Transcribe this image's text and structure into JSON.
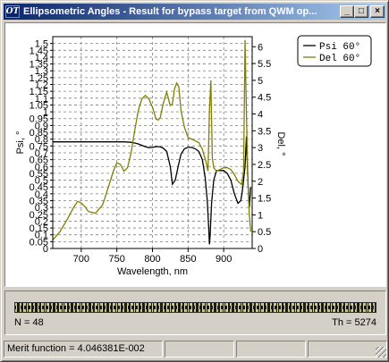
{
  "window": {
    "title": "Ellipsometric Angles - Result for bypass target from QWM op...",
    "icon_text": "OT",
    "buttons": {
      "minimize": "_",
      "maximize": "□",
      "close": "×"
    }
  },
  "chart_data": {
    "type": "line",
    "xlabel": "Wavelength, nm",
    "ylabel_left": "Psi, °",
    "ylabel_right": "Del, °",
    "xlim": [
      660,
      940
    ],
    "ylim_left": [
      0,
      1.55
    ],
    "ylim_right": [
      0,
      6.3
    ],
    "x_ticks": [
      700,
      750,
      800,
      850,
      900
    ],
    "y_ticks_left": [
      "0",
      "0.05",
      "0.1",
      "0.15",
      "0.2",
      "0.25",
      "0.3",
      "0.35",
      "0.4",
      "0.45",
      "0.5",
      "0.55",
      "0.6",
      "0.65",
      "0.7",
      "0.75",
      "0.8",
      "0.85",
      "0.9",
      "0.95",
      "1",
      "1.05",
      "1.1",
      "1.15",
      "1.2",
      "1.25",
      "1.3",
      "1.35",
      "1.4",
      "1.45",
      "1.5"
    ],
    "y_ticks_right": [
      "0",
      "0.5",
      "1",
      "1.5",
      "2",
      "2.5",
      "3",
      "3.5",
      "4",
      "4.5",
      "5",
      "5.5",
      "6"
    ],
    "grid": true,
    "legend_position": "top-right",
    "series": [
      {
        "name": "Psi 60°",
        "axis": "left",
        "color": "#000000",
        "x": [
          660,
          700,
          740,
          760,
          770,
          775,
          780,
          785,
          790,
          795,
          800,
          805,
          810,
          815,
          820,
          825,
          828,
          832,
          836,
          840,
          845,
          850,
          855,
          860,
          865,
          870,
          874,
          877,
          879,
          880,
          881,
          883,
          886,
          890,
          895,
          900,
          905,
          910,
          915,
          920,
          924,
          927,
          930,
          932,
          934,
          936,
          938
        ],
        "y": [
          0.78,
          0.78,
          0.78,
          0.78,
          0.777,
          0.772,
          0.765,
          0.755,
          0.745,
          0.738,
          0.74,
          0.745,
          0.745,
          0.735,
          0.71,
          0.6,
          0.47,
          0.5,
          0.6,
          0.69,
          0.73,
          0.74,
          0.74,
          0.73,
          0.71,
          0.65,
          0.52,
          0.35,
          0.15,
          0.03,
          0.1,
          0.33,
          0.5,
          0.57,
          0.57,
          0.57,
          0.55,
          0.5,
          0.4,
          0.33,
          0.35,
          0.45,
          0.6,
          0.82,
          0.5,
          0.3,
          0.45
        ]
      },
      {
        "name": "Del 60°",
        "axis": "right",
        "color": "#808000",
        "x": [
          660,
          670,
          680,
          690,
          695,
          700,
          705,
          710,
          720,
          730,
          740,
          745,
          750,
          755,
          760,
          765,
          770,
          775,
          780,
          785,
          790,
          795,
          800,
          805,
          808,
          811,
          815,
          820,
          825,
          828,
          831,
          834,
          837,
          840,
          845,
          850,
          855,
          860,
          865,
          870,
          872,
          875,
          878,
          880,
          882,
          884,
          886,
          890,
          895,
          900,
          905,
          910,
          915,
          920,
          925,
          928,
          930,
          932,
          934,
          936,
          938
        ],
        "y": [
          0.25,
          0.5,
          0.85,
          1.25,
          1.4,
          1.35,
          1.25,
          1.1,
          1.05,
          1.3,
          1.95,
          2.3,
          2.55,
          2.5,
          2.3,
          2.4,
          2.85,
          3.5,
          4.1,
          4.45,
          4.55,
          4.45,
          4.2,
          3.85,
          3.82,
          3.9,
          4.3,
          4.65,
          4.25,
          4.3,
          4.75,
          4.92,
          4.8,
          4.1,
          3.6,
          3.3,
          3.25,
          3.2,
          3.15,
          2.95,
          2.8,
          2.6,
          2.3,
          4.1,
          5.0,
          2.7,
          2.4,
          2.3,
          2.35,
          2.4,
          2.4,
          2.35,
          2.2,
          2.0,
          1.9,
          2.3,
          6.2,
          4.0,
          2.0,
          1.0,
          0.5
        ]
      }
    ]
  },
  "panel": {
    "n_text": "N = 48",
    "th_text": "Th = 5274"
  },
  "statusbar": {
    "merit_text": "Merit function =  4.046381E-002",
    "cell2": "",
    "cell3": "",
    "cell4": ""
  }
}
